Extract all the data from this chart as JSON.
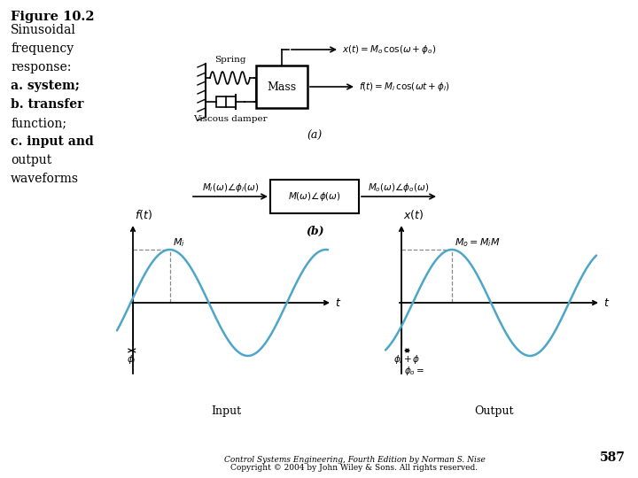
{
  "bg_color": "#ffffff",
  "text_color": "#000000",
  "figure_label": "Figure 10.2",
  "description_lines": [
    "Sinusoidal",
    "frequency",
    "response:",
    "a. system;",
    "b. transfer",
    "function;",
    "c. input and",
    "output",
    "waveforms"
  ],
  "bold_prefixes": [
    "a.",
    "b.",
    "c."
  ],
  "wave_color": "#4da6c8",
  "copyright_line1": "Control Systems Engineering, Fourth Edition by Norman S. Nise",
  "copyright_line2": "Copyright © 2004 by John Wiley & Sons. All rights reserved.",
  "page_number": "587",
  "part_a_label": "(a)",
  "part_b_label": "(b)",
  "spring_label": "Spring",
  "damper_label": "Viscous damper",
  "mass_label": "Mass",
  "xt_eq": "x(t) = M_o\\cos(\\omega + \\phi_o)",
  "ft_eq": "f(t) = M_i\\cos(\\omega t + \\phi_i)",
  "input_label": "Input",
  "output_label": "Output"
}
